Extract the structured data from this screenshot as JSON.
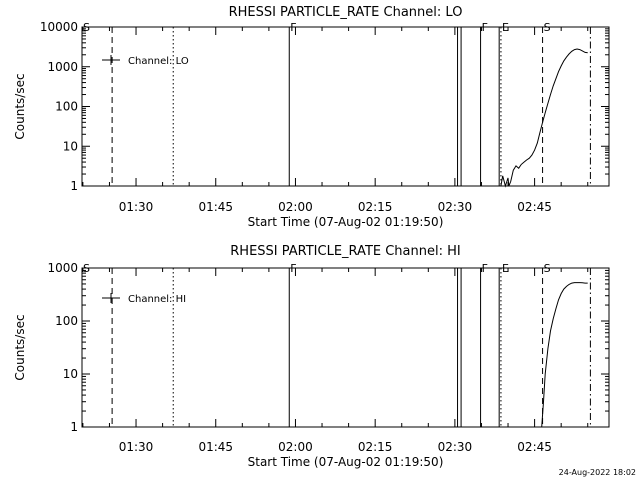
{
  "footer": {
    "timestamp": "24-Aug-2022 18:02"
  },
  "chart_data": [
    {
      "type": "line",
      "title": "RHESSI PARTICLE_RATE Channel: LO",
      "xlabel": "Start Time (07-Aug-02 01:19:50)",
      "ylabel": "Counts/sec",
      "yscale": "log",
      "ylim": [
        1,
        10000
      ],
      "xlim": [
        "01:19:50",
        "02:59:00"
      ],
      "x_ticks": [
        "01:30",
        "01:45",
        "02:00",
        "02:15",
        "02:30",
        "02:45"
      ],
      "y_ticks": [
        "1",
        "10",
        "100",
        "1000",
        "10000"
      ],
      "legend": {
        "position": "top-left",
        "entries": [
          "Channel: LO"
        ]
      },
      "markers": [
        {
          "label": "S",
          "time": "01:19:50",
          "style": "solid"
        },
        {
          "label": "",
          "time": "01:25:30",
          "style": "dashed"
        },
        {
          "label": "",
          "time": "01:37:00",
          "style": "dotted"
        },
        {
          "label": "F",
          "time": "01:58:50",
          "style": "solid"
        },
        {
          "label": "",
          "time": "02:30:30",
          "style": "solid"
        },
        {
          "label": "",
          "time": "02:31:10",
          "style": "solid"
        },
        {
          "label": "F",
          "time": "02:34:50",
          "style": "solid"
        },
        {
          "label": "",
          "time": "02:38:20",
          "style": "solid"
        },
        {
          "label": "E",
          "time": "02:38:40",
          "style": "dotted"
        },
        {
          "label": "S",
          "time": "02:46:30",
          "style": "dashed"
        },
        {
          "label": "",
          "time": "02:55:30",
          "style": "dashdot"
        }
      ],
      "series": [
        {
          "x": [
            "02:38:40",
            "02:39:00",
            "02:39:30",
            "02:40:00",
            "02:40:10",
            "02:40:30",
            "02:41:00",
            "02:41:30",
            "02:42:00",
            "02:42:30",
            "02:43:00",
            "02:43:30",
            "02:44:00",
            "02:44:30",
            "02:45:00",
            "02:45:30",
            "02:46:00",
            "02:46:30",
            "02:47:00",
            "02:47:30",
            "02:48:00",
            "02:48:30",
            "02:49:00",
            "02:49:30",
            "02:50:00",
            "02:50:30",
            "02:51:00",
            "02:51:30",
            "02:52:00",
            "02:52:30",
            "02:53:00",
            "02:53:30",
            "02:54:00",
            "02:54:30",
            "02:55:00"
          ],
          "y": [
            1,
            1.8,
            1,
            1.6,
            1,
            1.3,
            2.5,
            3.2,
            2.8,
            3.5,
            4,
            4.5,
            5,
            6,
            8,
            12,
            22,
            40,
            70,
            120,
            200,
            330,
            500,
            750,
            1050,
            1400,
            1750,
            2100,
            2450,
            2700,
            2800,
            2700,
            2500,
            2300,
            2250
          ]
        }
      ]
    },
    {
      "type": "line",
      "title": "RHESSI PARTICLE_RATE Channel: HI",
      "xlabel": "Start Time (07-Aug-02 01:19:50)",
      "ylabel": "Counts/sec",
      "yscale": "log",
      "ylim": [
        1,
        1000
      ],
      "xlim": [
        "01:19:50",
        "02:59:00"
      ],
      "x_ticks": [
        "01:30",
        "01:45",
        "02:00",
        "02:15",
        "02:30",
        "02:45"
      ],
      "y_ticks": [
        "1",
        "10",
        "100",
        "1000"
      ],
      "legend": {
        "position": "top-left",
        "entries": [
          "Channel: HI"
        ]
      },
      "markers": [
        {
          "label": "S",
          "time": "01:19:50",
          "style": "solid"
        },
        {
          "label": "",
          "time": "01:25:30",
          "style": "dashed"
        },
        {
          "label": "",
          "time": "01:37:00",
          "style": "dotted"
        },
        {
          "label": "F",
          "time": "01:58:50",
          "style": "solid"
        },
        {
          "label": "",
          "time": "02:30:30",
          "style": "solid"
        },
        {
          "label": "",
          "time": "02:31:10",
          "style": "solid"
        },
        {
          "label": "F",
          "time": "02:34:50",
          "style": "solid"
        },
        {
          "label": "",
          "time": "02:38:20",
          "style": "solid"
        },
        {
          "label": "E",
          "time": "02:38:40",
          "style": "dotted"
        },
        {
          "label": "S",
          "time": "02:46:30",
          "style": "dashed"
        },
        {
          "label": "",
          "time": "02:55:30",
          "style": "dashdot"
        }
      ],
      "series": [
        {
          "x": [
            "02:46:20",
            "02:46:40",
            "02:47:00",
            "02:47:30",
            "02:48:00",
            "02:48:30",
            "02:49:00",
            "02:49:30",
            "02:50:00",
            "02:50:30",
            "02:51:00",
            "02:51:30",
            "02:52:00",
            "02:52:30",
            "02:53:00",
            "02:53:30",
            "02:54:00",
            "02:54:30",
            "02:55:00"
          ],
          "y": [
            1,
            3,
            10,
            30,
            65,
            110,
            170,
            250,
            330,
            400,
            450,
            490,
            520,
            530,
            530,
            530,
            525,
            520,
            520
          ]
        }
      ]
    }
  ]
}
